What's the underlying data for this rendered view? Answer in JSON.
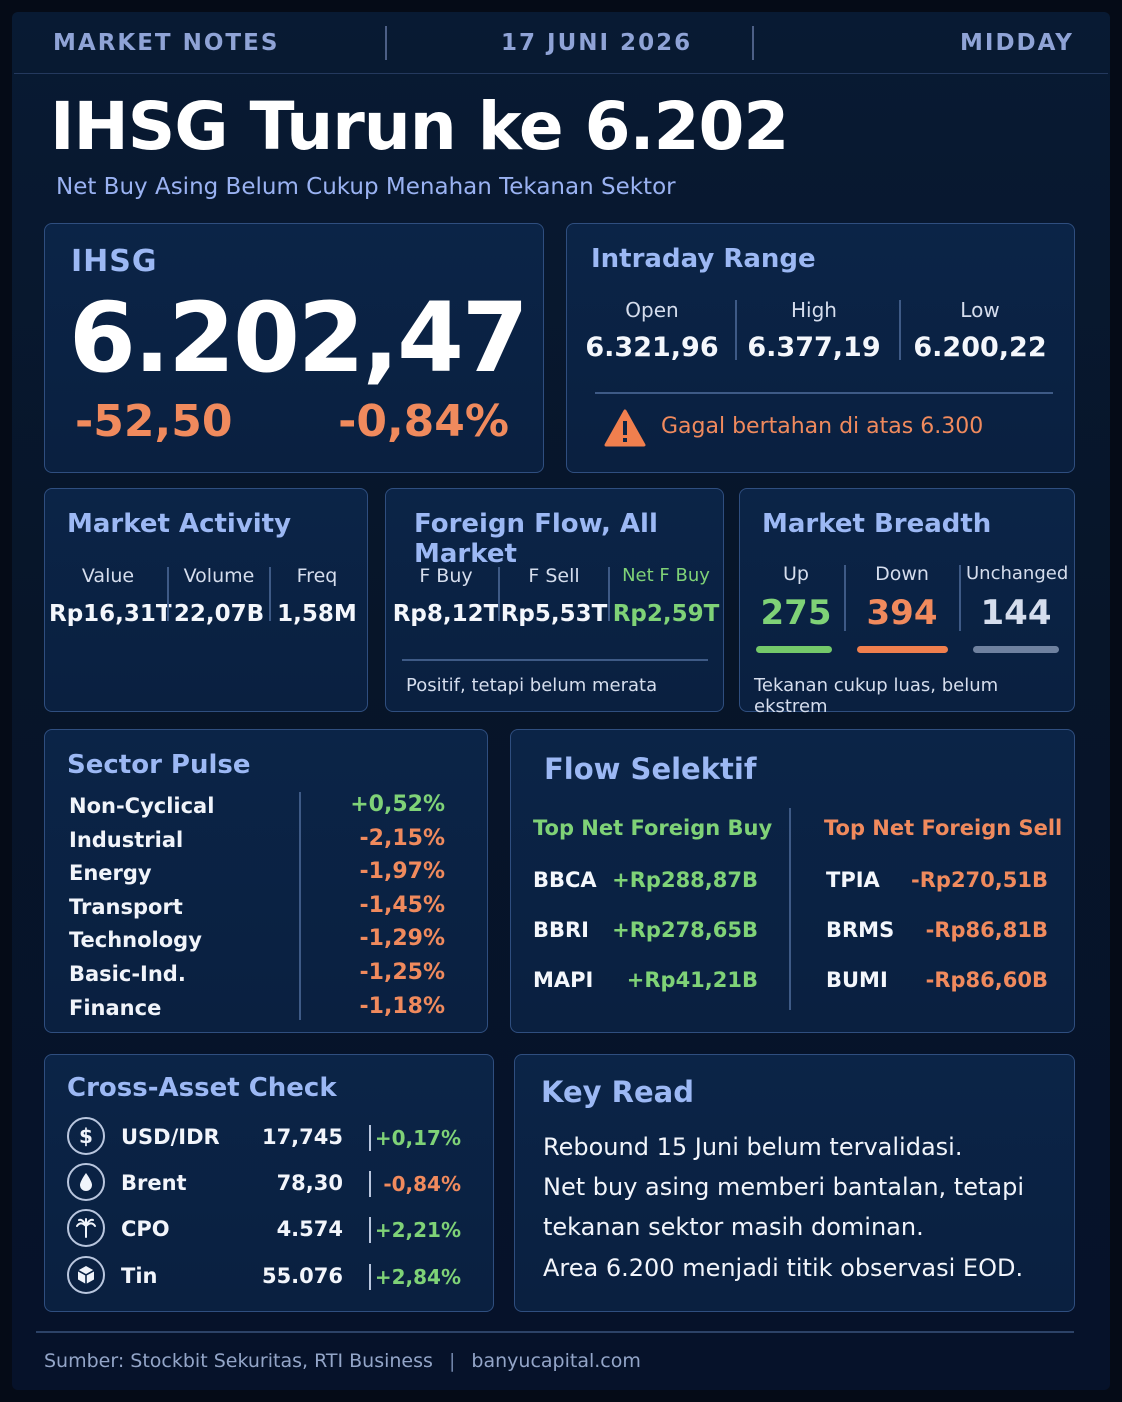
{
  "header": {
    "left": "MARKET NOTES",
    "center": "17 JUNI 2026",
    "right": "MIDDAY"
  },
  "title": "IHSG Turun ke 6.202",
  "subtitle": "Net Buy Asing Belum Cukup Menahan Tekanan Sektor",
  "ihsg": {
    "label": "IHSG",
    "value": "6.202,47",
    "change": "-52,50",
    "change_pct": "-0,84%"
  },
  "intraday": {
    "title": "Intraday Range",
    "open_label": "Open",
    "open_value": "6.321,96",
    "high_label": "High",
    "high_value": "6.377,19",
    "low_label": "Low",
    "low_value": "6.200,22",
    "warning": "Gagal bertahan di atas 6.300"
  },
  "activity": {
    "title": "Market Activity",
    "value_label": "Value",
    "value": "Rp16,31T",
    "volume_label": "Volume",
    "volume": "22,07B",
    "freq_label": "Freq",
    "freq": "1,58M"
  },
  "foreign": {
    "title": "Foreign Flow, All Market",
    "buy_label": "F Buy",
    "buy": "Rp8,12T",
    "sell_label": "F Sell",
    "sell": "Rp5,53T",
    "net_label": "Net F Buy",
    "net": "Rp2,59T",
    "note": "Positif, tetapi belum merata"
  },
  "breadth": {
    "title": "Market Breadth",
    "up_label": "Up",
    "up": "275",
    "down_label": "Down",
    "down": "394",
    "unch_label": "Unchanged",
    "unch": "144",
    "note": "Tekanan cukup luas, belum ekstrem",
    "colors": {
      "up": "#74c96a",
      "down": "#f07f4e",
      "unch": "#6f819f"
    }
  },
  "sectors": {
    "title": "Sector Pulse",
    "items": [
      {
        "name": "Non-Cyclical",
        "change": "+0,52%"
      },
      {
        "name": "Industrial",
        "change": "-2,15%"
      },
      {
        "name": "Energy",
        "change": "-1,97%"
      },
      {
        "name": "Transport",
        "change": "-1,45%"
      },
      {
        "name": "Technology",
        "change": "-1,29%"
      },
      {
        "name": "Basic-Ind.",
        "change": "-1,25%"
      },
      {
        "name": "Finance",
        "change": "-1,18%"
      }
    ]
  },
  "flow": {
    "title": "Flow Selektif",
    "buy_title": "Top Net Foreign Buy",
    "sell_title": "Top Net Foreign Sell",
    "buy": [
      {
        "ticker": "BBCA",
        "value": "+Rp288,87B"
      },
      {
        "ticker": "BBRI",
        "value": "+Rp278,65B"
      },
      {
        "ticker": "MAPI",
        "value": "+Rp41,21B"
      }
    ],
    "sell": [
      {
        "ticker": "TPIA",
        "value": "-Rp270,51B"
      },
      {
        "ticker": "BRMS",
        "value": "-Rp86,81B"
      },
      {
        "ticker": "BUMI",
        "value": "-Rp86,60B"
      }
    ]
  },
  "cross": {
    "title": "Cross-Asset Check",
    "items": [
      {
        "icon": "dollar-icon",
        "glyph": "$",
        "name": "USD/IDR",
        "value": "17,745",
        "change": "+0,17%"
      },
      {
        "icon": "oil-drop-icon",
        "glyph": "💧",
        "name": "Brent",
        "value": "78,30",
        "change": "-0,84%"
      },
      {
        "icon": "palm-icon",
        "glyph": "✳",
        "name": "CPO",
        "value": "4.574",
        "change": "+2,21%"
      },
      {
        "icon": "cube-icon",
        "glyph": "⬢",
        "name": "Tin",
        "value": "55.076",
        "change": "+2,84%"
      }
    ]
  },
  "keyread": {
    "title": "Key Read",
    "lines": [
      "Rebound 15 Juni belum tervalidasi.",
      "Net buy asing memberi bantalan, tetapi",
      "tekanan sektor masih dominan.",
      "Area 6.200 menjadi titik observasi EOD."
    ]
  },
  "footer": {
    "source": "Sumber: Stockbit Sekuritas, RTI Business",
    "site": "banyucapital.com"
  }
}
